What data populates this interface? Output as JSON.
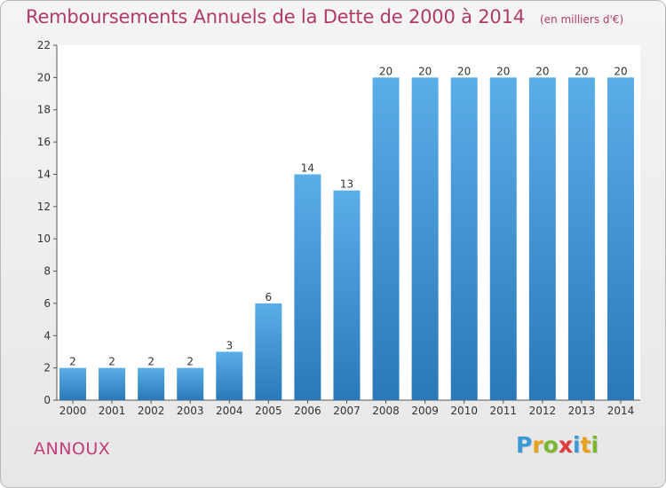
{
  "header": {
    "title": "Remboursements Annuels de la Dette de 2000 à 2014",
    "unit": "(en milliers d'€)"
  },
  "footer": {
    "commune": "ANNOUX",
    "logo_letters": [
      "P",
      "r",
      "o",
      "x",
      "i",
      "t",
      "i"
    ],
    "logo_colors": [
      "#3a9ad9",
      "#e8a11c",
      "#7cb82f",
      "#e23b3b",
      "#3a9ad9",
      "#e8a11c",
      "#7cb82f"
    ]
  },
  "chart_data": {
    "type": "bar",
    "title": "Remboursements Annuels de la Dette de 2000 à 2014",
    "subtitle": "(en milliers d'€)",
    "xlabel": "",
    "ylabel": "",
    "categories": [
      "2000",
      "2001",
      "2002",
      "2003",
      "2004",
      "2005",
      "2006",
      "2007",
      "2008",
      "2009",
      "2010",
      "2011",
      "2012",
      "2013",
      "2014"
    ],
    "values": [
      2,
      2,
      2,
      2,
      3,
      6,
      14,
      13,
      20,
      20,
      20,
      20,
      20,
      20,
      20
    ],
    "data_labels": [
      "2",
      "2",
      "2",
      "2",
      "3",
      "6",
      "14",
      "13",
      "20",
      "20",
      "20",
      "20",
      "20",
      "20",
      "20"
    ],
    "ylim": [
      0,
      22
    ],
    "yticks": [
      0,
      2,
      4,
      6,
      8,
      10,
      12,
      14,
      16,
      18,
      20,
      22
    ],
    "grid": false,
    "legend": "none",
    "bar_color_top": "#5aaee8",
    "bar_color_bottom": "#2a78b8"
  }
}
